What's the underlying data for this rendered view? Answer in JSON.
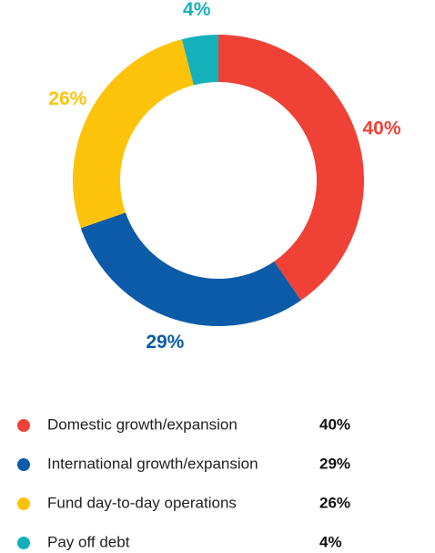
{
  "chart_data": {
    "type": "donut",
    "categories": [
      "Domestic growth/expansion",
      "International growth/expansion",
      "Fund day-to-day operations",
      "Pay off debt"
    ],
    "values": [
      40,
      29,
      26,
      4
    ],
    "value_labels": [
      "40%",
      "29%",
      "26%",
      "4%"
    ],
    "colors": [
      "#ef4136",
      "#0b5ba8",
      "#fdc30b",
      "#14b1bb"
    ]
  }
}
